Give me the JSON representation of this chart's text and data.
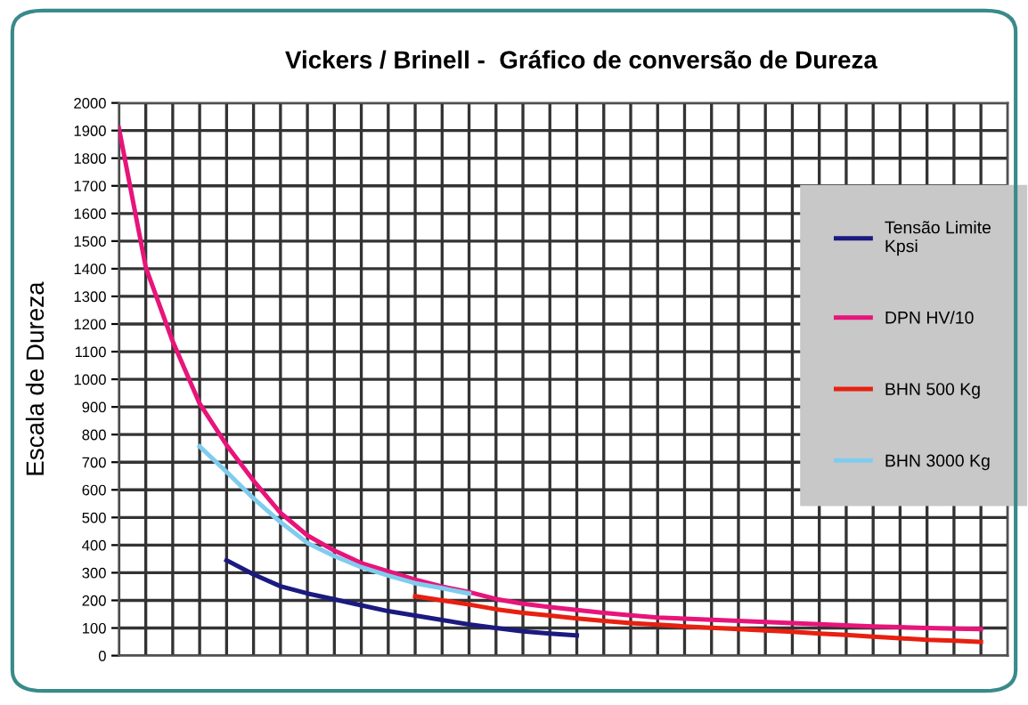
{
  "chart_data": {
    "type": "line",
    "title": "Vickers / Brinell -  Gráfico de conversão de Dureza",
    "ylabel": "Escala de Dureza",
    "categories": [
      null,
      null,
      null,
      null,
      null,
      null,
      null,
      null,
      null,
      null,
      null,
      null,
      null,
      null,
      null,
      null,
      null,
      null,
      null,
      null,
      null,
      null,
      null,
      null,
      null,
      null,
      null,
      null,
      null,
      null,
      null,
      null,
      null,
      null
    ],
    "ylim": [
      0,
      2000
    ],
    "yticks": [
      0,
      100,
      200,
      300,
      400,
      500,
      600,
      700,
      800,
      900,
      1000,
      1100,
      1200,
      1300,
      1400,
      1500,
      1600,
      1700,
      1800,
      1900,
      2000
    ],
    "grid": true,
    "legend": "right",
    "marker": "none",
    "line_style": "solid",
    "series": [
      {
        "name": "Tensão Limite\nKpsi",
        "color": "#1a1a80",
        "values": [
          null,
          null,
          null,
          null,
          345,
          294,
          251,
          225,
          204,
          182,
          161,
          145,
          129,
          113,
          100,
          88,
          80,
          73,
          null,
          null,
          null,
          null,
          null,
          null,
          null,
          null,
          null,
          null,
          null,
          null,
          null,
          null,
          null,
          null
        ]
      },
      {
        "name": "DPN HV/10",
        "color": "#e8147a",
        "values": [
          1910,
          1405,
          1137,
          912,
          762,
          633,
          517,
          435,
          380,
          335,
          305,
          275,
          250,
          230,
          205,
          188,
          176,
          165,
          155,
          146,
          138,
          134,
          130,
          126,
          122,
          118,
          114,
          110,
          106,
          103,
          100,
          98,
          96,
          null
        ]
      },
      {
        "name": "BHN 500 Kg",
        "color": "#e82010",
        "values": [
          null,
          null,
          null,
          null,
          null,
          null,
          null,
          null,
          null,
          null,
          null,
          215,
          200,
          185,
          168,
          155,
          145,
          135,
          126,
          118,
          112,
          106,
          101,
          96,
          91,
          86,
          80,
          75,
          69,
          63,
          57,
          54,
          50,
          null
        ]
      },
      {
        "name": "BHN 3000 Kg",
        "color": "#80ccee",
        "values": [
          null,
          null,
          null,
          757,
          665,
          569,
          483,
          408,
          360,
          320,
          290,
          262,
          244,
          225,
          null,
          null,
          null,
          null,
          null,
          null,
          null,
          null,
          null,
          null,
          null,
          null,
          null,
          null,
          null,
          null,
          null,
          null,
          null,
          null
        ]
      }
    ]
  }
}
